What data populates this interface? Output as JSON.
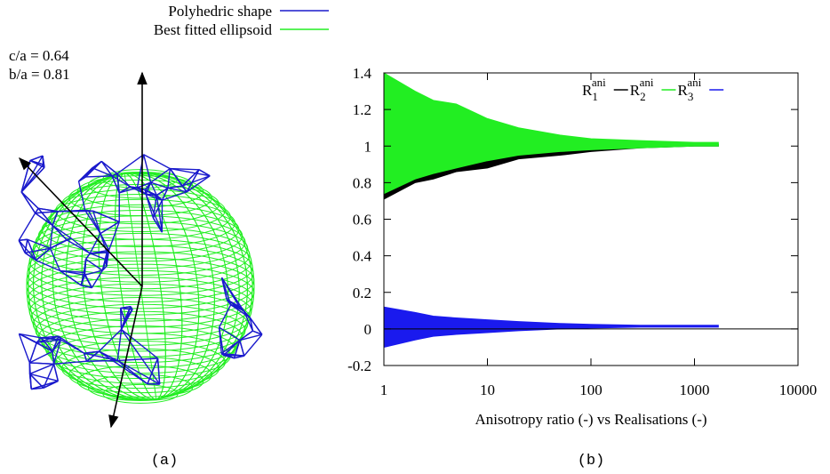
{
  "panel_a": {
    "legend": [
      {
        "label": "Polyhedric shape",
        "color": "#1a1acc"
      },
      {
        "label": "Best fitted ellipsoid",
        "color": "#22ee22"
      }
    ],
    "annotations": [
      "c/a = 0.64",
      "b/a = 0.81"
    ],
    "caption": "(a)"
  },
  "chart_data": {
    "type": "band",
    "xlabel": "Anisotropy ratio (-) vs Realisations (-)",
    "caption": "(b)",
    "xlog": true,
    "xlim": [
      1,
      10000
    ],
    "xticks": [
      1,
      10,
      100,
      1000,
      10000
    ],
    "ylim": [
      -0.2,
      1.4
    ],
    "yticks": [
      -0.2,
      0,
      0.2,
      0.4,
      0.6,
      0.8,
      1,
      1.2,
      1.4
    ],
    "legend_position": "top-right",
    "series": [
      {
        "name": "R",
        "name_sub": "1",
        "name_sup": "ani",
        "color": "#000000",
        "x": [
          1,
          2,
          3,
          5,
          10,
          20,
          50,
          100,
          300,
          1000,
          1700
        ],
        "upper": [
          1.38,
          1.28,
          1.24,
          1.2,
          1.14,
          1.09,
          1.05,
          1.03,
          1.02,
          1.01,
          1.01
        ],
        "lower": [
          0.71,
          0.8,
          0.82,
          0.86,
          0.88,
          0.93,
          0.95,
          0.97,
          0.99,
          1.0,
          1.0
        ]
      },
      {
        "name": "R",
        "name_sub": "2",
        "name_sup": "ani",
        "color": "#22ee22",
        "x": [
          1,
          2,
          3,
          5,
          10,
          20,
          50,
          100,
          300,
          1000,
          1700
        ],
        "upper": [
          1.4,
          1.3,
          1.25,
          1.23,
          1.15,
          1.1,
          1.06,
          1.04,
          1.03,
          1.02,
          1.02
        ],
        "lower": [
          0.74,
          0.82,
          0.85,
          0.88,
          0.92,
          0.95,
          0.97,
          0.98,
          0.99,
          1.0,
          1.0
        ]
      },
      {
        "name": "R",
        "name_sub": "3",
        "name_sup": "ani",
        "color": "#1a1aee",
        "x": [
          1,
          2,
          3,
          5,
          10,
          20,
          50,
          100,
          300,
          1000,
          1700
        ],
        "upper": [
          0.12,
          0.09,
          0.07,
          0.06,
          0.05,
          0.04,
          0.03,
          0.025,
          0.02,
          0.02,
          0.02
        ],
        "lower": [
          -0.1,
          -0.06,
          -0.04,
          -0.03,
          -0.02,
          -0.01,
          0,
          0.005,
          0.01,
          0.01,
          0.01
        ]
      }
    ]
  }
}
